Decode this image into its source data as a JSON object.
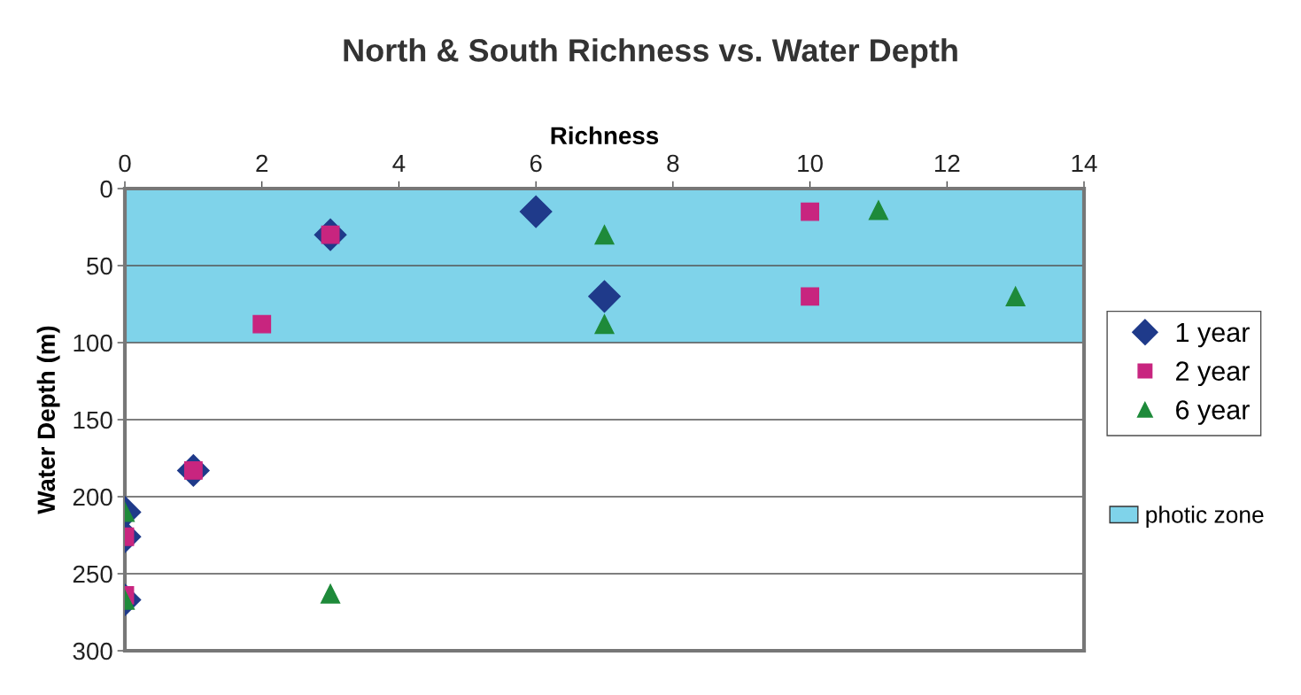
{
  "chart_data": {
    "type": "scatter",
    "title": "North & South Richness vs. Water Depth",
    "xlabel": "Richness",
    "ylabel": "Water Depth (m)",
    "xlim": [
      0,
      14
    ],
    "xticks": [
      0,
      2,
      4,
      6,
      8,
      10,
      12,
      14
    ],
    "ylim": [
      300,
      0
    ],
    "yticks": [
      0,
      50,
      100,
      150,
      200,
      250,
      300
    ],
    "grid": "y",
    "legend": "right",
    "series": [
      {
        "name": "1 year",
        "color": "#1f3a8a",
        "marker": "diamond",
        "x": [
          3,
          6,
          7,
          1,
          0,
          0,
          0
        ],
        "values": [
          30,
          15,
          70,
          183,
          210,
          226,
          267
        ]
      },
      {
        "name": "2 year",
        "color": "#c8257f",
        "marker": "square",
        "x": [
          10,
          3,
          10,
          2,
          1,
          0,
          0
        ],
        "values": [
          15,
          30,
          70,
          88,
          183,
          226,
          264
        ]
      },
      {
        "name": "6 year",
        "color": "#1e8a3a",
        "marker": "triangle",
        "x": [
          7,
          11,
          13,
          7,
          0,
          0,
          3
        ],
        "values": [
          30,
          14,
          70,
          88,
          210,
          267,
          263
        ]
      }
    ],
    "bands": [
      {
        "axis": "y",
        "from": 0,
        "to": 100,
        "label": "photic zone",
        "color": "#7fd3ea"
      }
    ]
  }
}
